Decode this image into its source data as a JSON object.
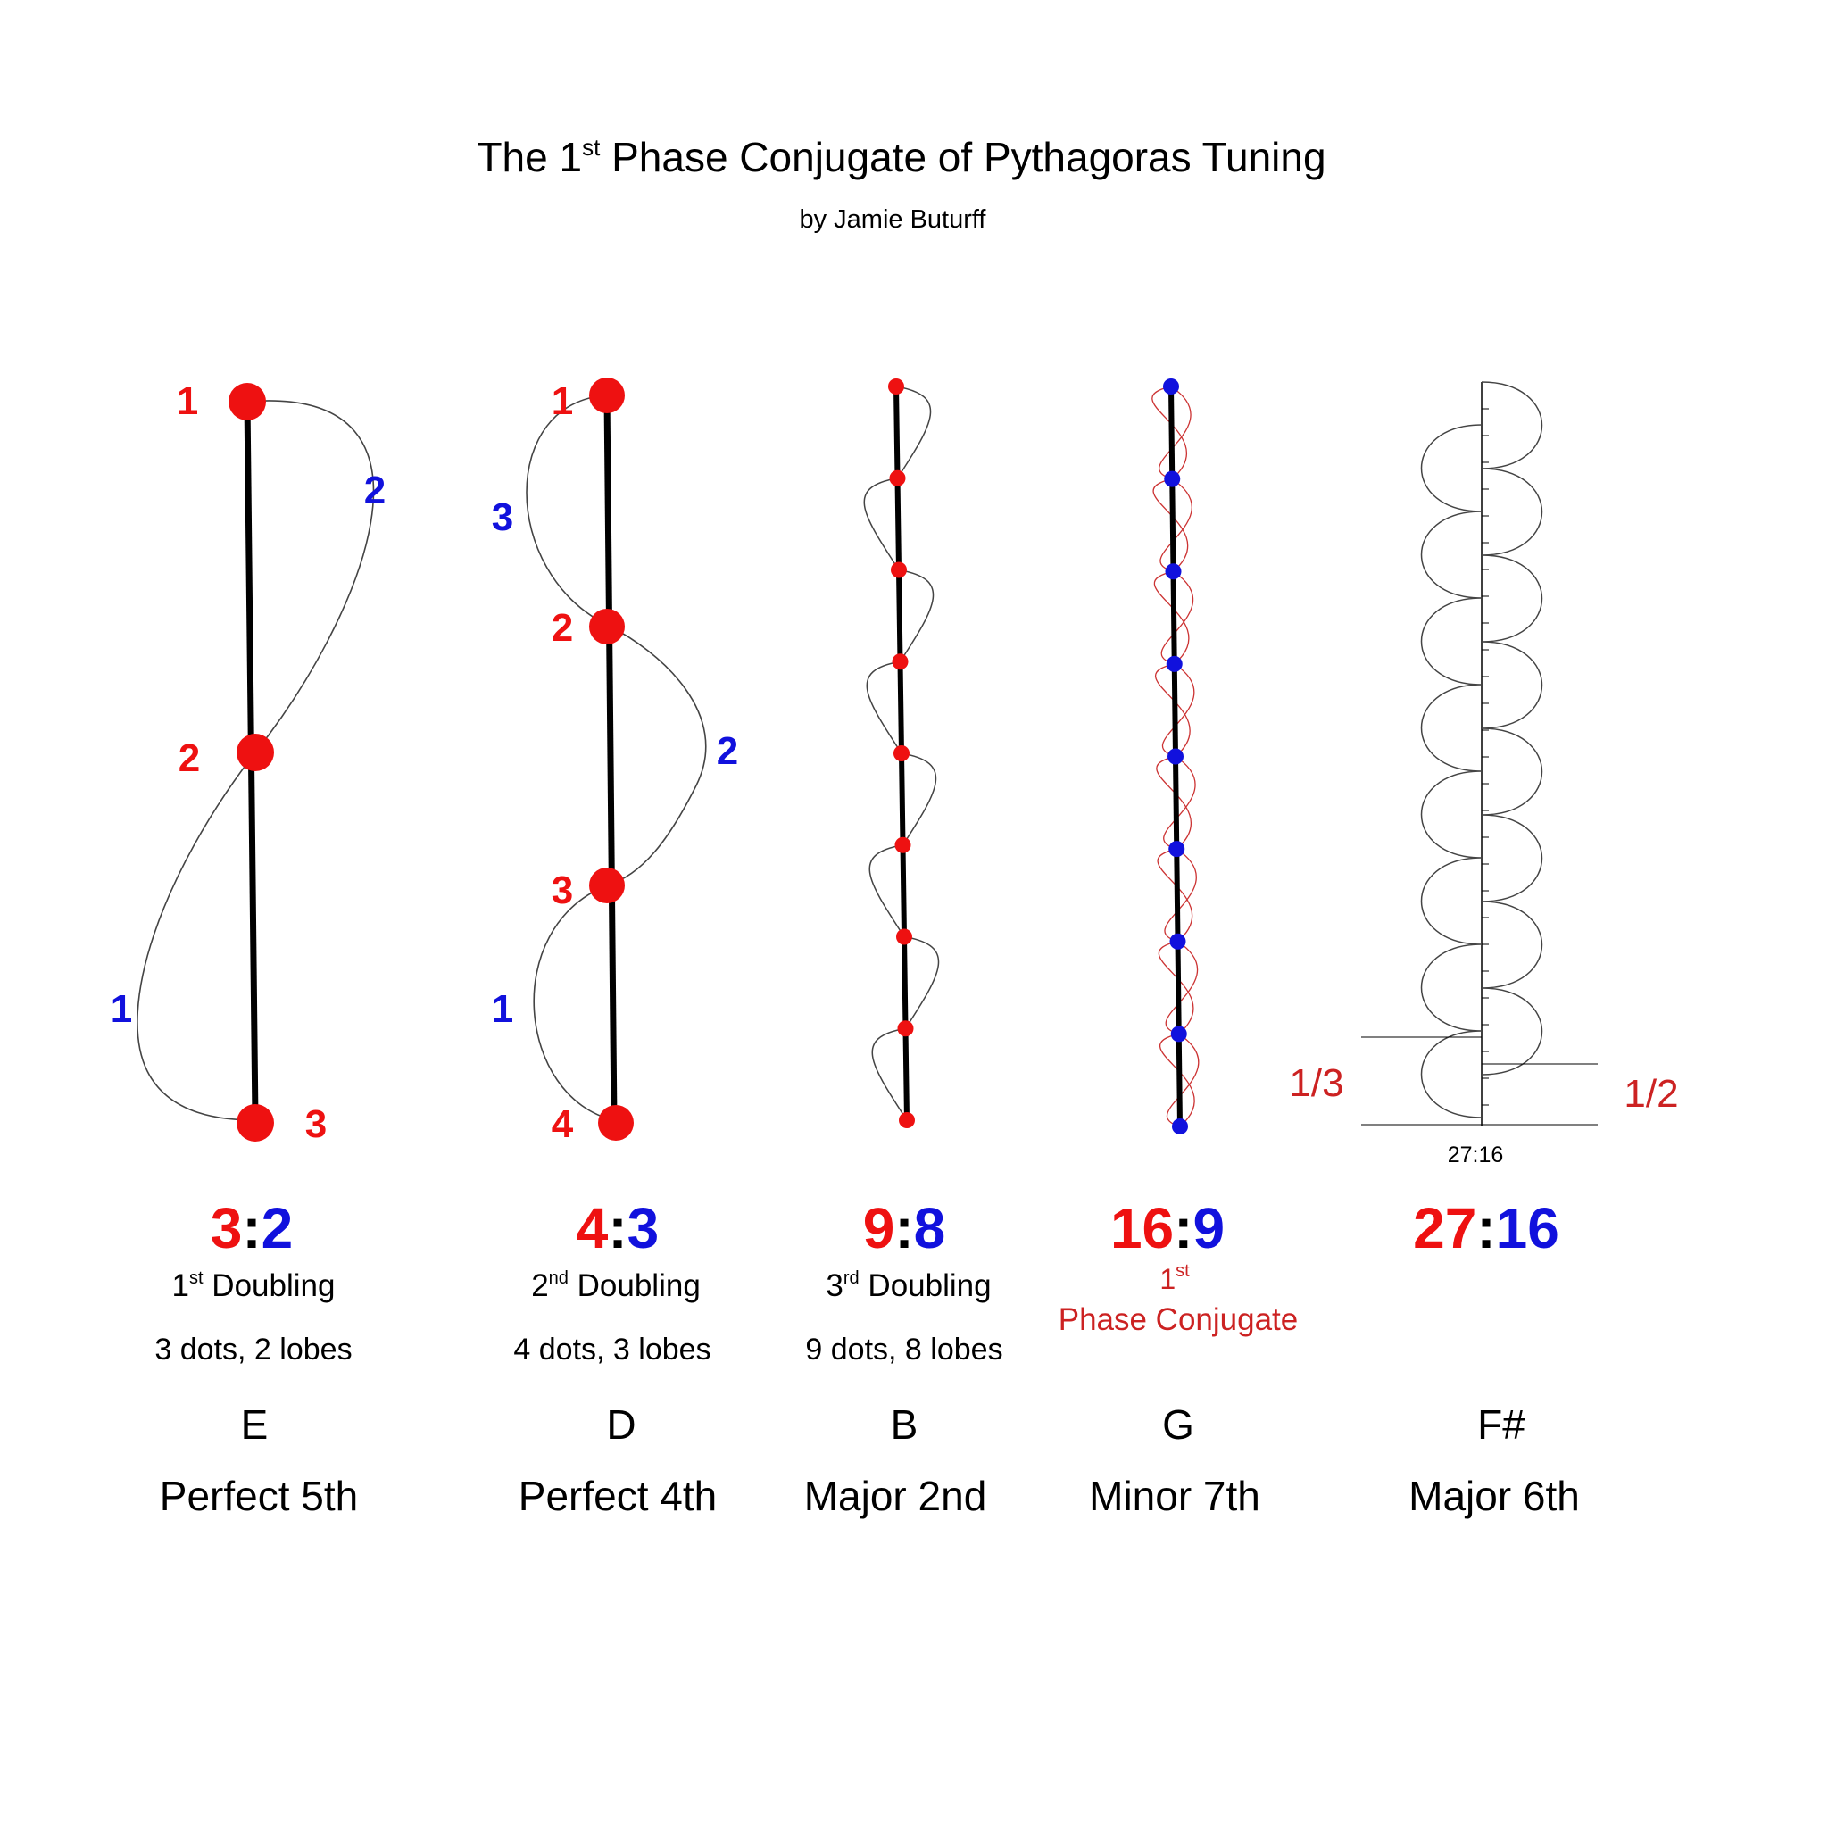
{
  "title": {
    "prefix": "The 1",
    "sup": "st",
    "suffix": " Phase Conjugate of Pythagoras Tuning",
    "author": "by Jamie Buturff"
  },
  "colors": {
    "red": "#ee1111",
    "blue": "#1111dd",
    "black": "#000000",
    "thin": "#444444",
    "pink": "#cc3333"
  },
  "columns": [
    {
      "id": "col1",
      "ratio_red": "3",
      "ratio_blue": "2",
      "ord": "1",
      "ord_sup": "st",
      "desc": " Doubling",
      "dots_text": "3 dots, 2 lobes",
      "note": "E",
      "interval": "Perfect 5th",
      "dot_labels": [
        "1",
        "2",
        "3"
      ],
      "lobe_labels": [
        "2",
        "1"
      ]
    },
    {
      "id": "col2",
      "ratio_red": "4",
      "ratio_blue": "3",
      "ord": "2",
      "ord_sup": "nd",
      "desc": " Doubling",
      "dots_text": "4 dots, 3 lobes",
      "note": "D",
      "interval": "Perfect 4th",
      "dot_labels": [
        "1",
        "2",
        "3",
        "4"
      ],
      "lobe_labels": [
        "3",
        "2",
        "1"
      ]
    },
    {
      "id": "col3",
      "ratio_red": "9",
      "ratio_blue": "8",
      "ord": "3",
      "ord_sup": "rd",
      "desc": " Doubling",
      "dots_text": "9 dots, 8 lobes",
      "note": "B",
      "interval": "Major 2nd",
      "dots": 9
    },
    {
      "id": "col4",
      "ratio_red": "16",
      "ratio_blue": "9",
      "ord": "1",
      "ord_sup": "st",
      "desc": "Phase Conjugate",
      "note": "G",
      "interval": "Minor 7th",
      "dots": 9
    },
    {
      "id": "col5",
      "ratio_red": "27",
      "ratio_blue": "16",
      "note": "F#",
      "interval": "Major 6th",
      "small_ratio": "27:16",
      "left_fraction": "1/3",
      "right_fraction": "1/2"
    }
  ]
}
